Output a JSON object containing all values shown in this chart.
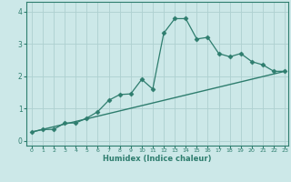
{
  "xlabel": "Humidex (Indice chaleur)",
  "ylabel": "",
  "bg_color": "#cce8e8",
  "line_color": "#2e7d6e",
  "grid_color": "#aed0d0",
  "xlim": [
    -0.5,
    23.3
  ],
  "ylim": [
    -0.15,
    4.3
  ],
  "x_ticks": [
    0,
    1,
    2,
    3,
    4,
    5,
    6,
    7,
    8,
    9,
    10,
    11,
    12,
    13,
    14,
    15,
    16,
    17,
    18,
    19,
    20,
    21,
    22,
    23
  ],
  "y_ticks": [
    0,
    1,
    2,
    3,
    4
  ],
  "series1_x": [
    0,
    1,
    2,
    3,
    4,
    5,
    6,
    7,
    8,
    9,
    10,
    11,
    12,
    13,
    14,
    15,
    16,
    17,
    18,
    19,
    20,
    21,
    22,
    23
  ],
  "series1_y": [
    0.27,
    0.35,
    0.35,
    0.55,
    0.55,
    0.7,
    0.9,
    1.25,
    1.43,
    1.45,
    1.9,
    1.6,
    3.33,
    3.78,
    3.78,
    3.15,
    3.2,
    2.7,
    2.6,
    2.7,
    2.45,
    2.35,
    2.15,
    2.15
  ],
  "series2_x": [
    0,
    23
  ],
  "series2_y": [
    0.27,
    2.15
  ],
  "marker": "D",
  "marker_size": 2.5
}
